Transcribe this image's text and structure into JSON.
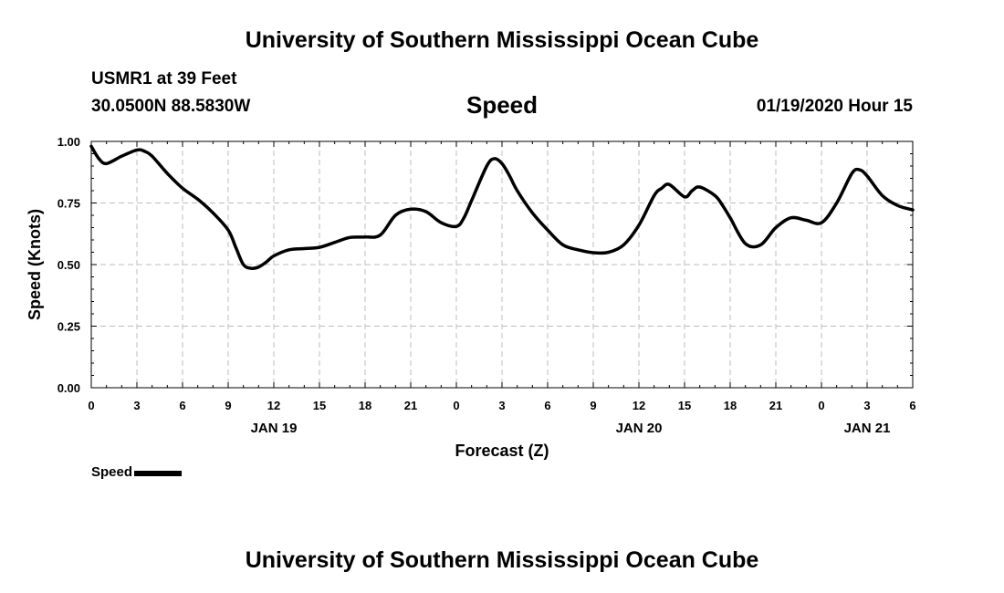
{
  "header": {
    "org_title": "University of Southern Mississippi Ocean Cube",
    "station": "USMR1 at 39 Feet",
    "coords": "30.0500N 88.5830W",
    "chart_title": "Speed",
    "timestamp": "01/19/2020 Hour 15"
  },
  "footer": {
    "org_title": "University of Southern Mississippi Ocean Cube"
  },
  "legend": {
    "label": "Speed"
  },
  "colors": {
    "line": "#000000",
    "grid": "#bdbdbd"
  },
  "chart_data": {
    "type": "line",
    "title": "Speed",
    "xlabel": "Forecast (Z)",
    "ylabel": "Speed (Knots)",
    "xlim": [
      0,
      54
    ],
    "ylim": [
      0,
      1.0
    ],
    "x_ticks": [
      0,
      3,
      6,
      9,
      12,
      15,
      18,
      21,
      24,
      27,
      30,
      33,
      36,
      39,
      42,
      45,
      48,
      51,
      54
    ],
    "x_tick_labels": [
      "0",
      "3",
      "6",
      "9",
      "12",
      "15",
      "18",
      "21",
      "0",
      "3",
      "6",
      "9",
      "12",
      "15",
      "18",
      "21",
      "0",
      "3",
      "6"
    ],
    "y_ticks": [
      0,
      0.25,
      0.5,
      0.75,
      1.0
    ],
    "y_tick_labels": [
      "0.00",
      "0.25",
      "0.50",
      "0.75",
      "1.00"
    ],
    "date_labels": [
      {
        "text": "JAN 19",
        "x": 12
      },
      {
        "text": "JAN 20",
        "x": 36
      },
      {
        "text": "JAN 21",
        "x": 51
      }
    ],
    "grid": true,
    "series": [
      {
        "name": "Speed",
        "x": [
          0,
          0.5,
          1,
          2,
          3,
          3.5,
          4,
          5,
          6,
          7,
          8,
          9,
          9.5,
          10,
          10.5,
          11,
          11.5,
          12,
          13,
          14,
          15,
          16,
          17,
          18,
          19,
          20,
          21,
          22,
          23,
          24,
          24.5,
          25,
          26,
          26.5,
          27,
          27.5,
          28,
          29,
          30,
          31,
          32,
          33,
          34,
          35,
          36,
          37,
          37.5,
          38,
          39,
          39.5,
          40,
          41,
          41.5,
          42,
          43,
          44,
          45,
          46,
          47,
          48,
          49,
          50,
          50.5,
          51,
          52,
          53,
          54
        ],
        "values": [
          0.98,
          0.93,
          0.91,
          0.94,
          0.965,
          0.96,
          0.94,
          0.87,
          0.81,
          0.765,
          0.71,
          0.64,
          0.57,
          0.5,
          0.485,
          0.49,
          0.51,
          0.535,
          0.56,
          0.565,
          0.57,
          0.59,
          0.61,
          0.612,
          0.62,
          0.7,
          0.725,
          0.715,
          0.67,
          0.655,
          0.69,
          0.76,
          0.9,
          0.93,
          0.91,
          0.86,
          0.8,
          0.71,
          0.64,
          0.58,
          0.56,
          0.548,
          0.55,
          0.58,
          0.66,
          0.78,
          0.81,
          0.825,
          0.775,
          0.8,
          0.815,
          0.78,
          0.74,
          0.69,
          0.585,
          0.58,
          0.65,
          0.69,
          0.68,
          0.67,
          0.75,
          0.87,
          0.885,
          0.86,
          0.78,
          0.74,
          0.722
        ]
      }
    ]
  }
}
